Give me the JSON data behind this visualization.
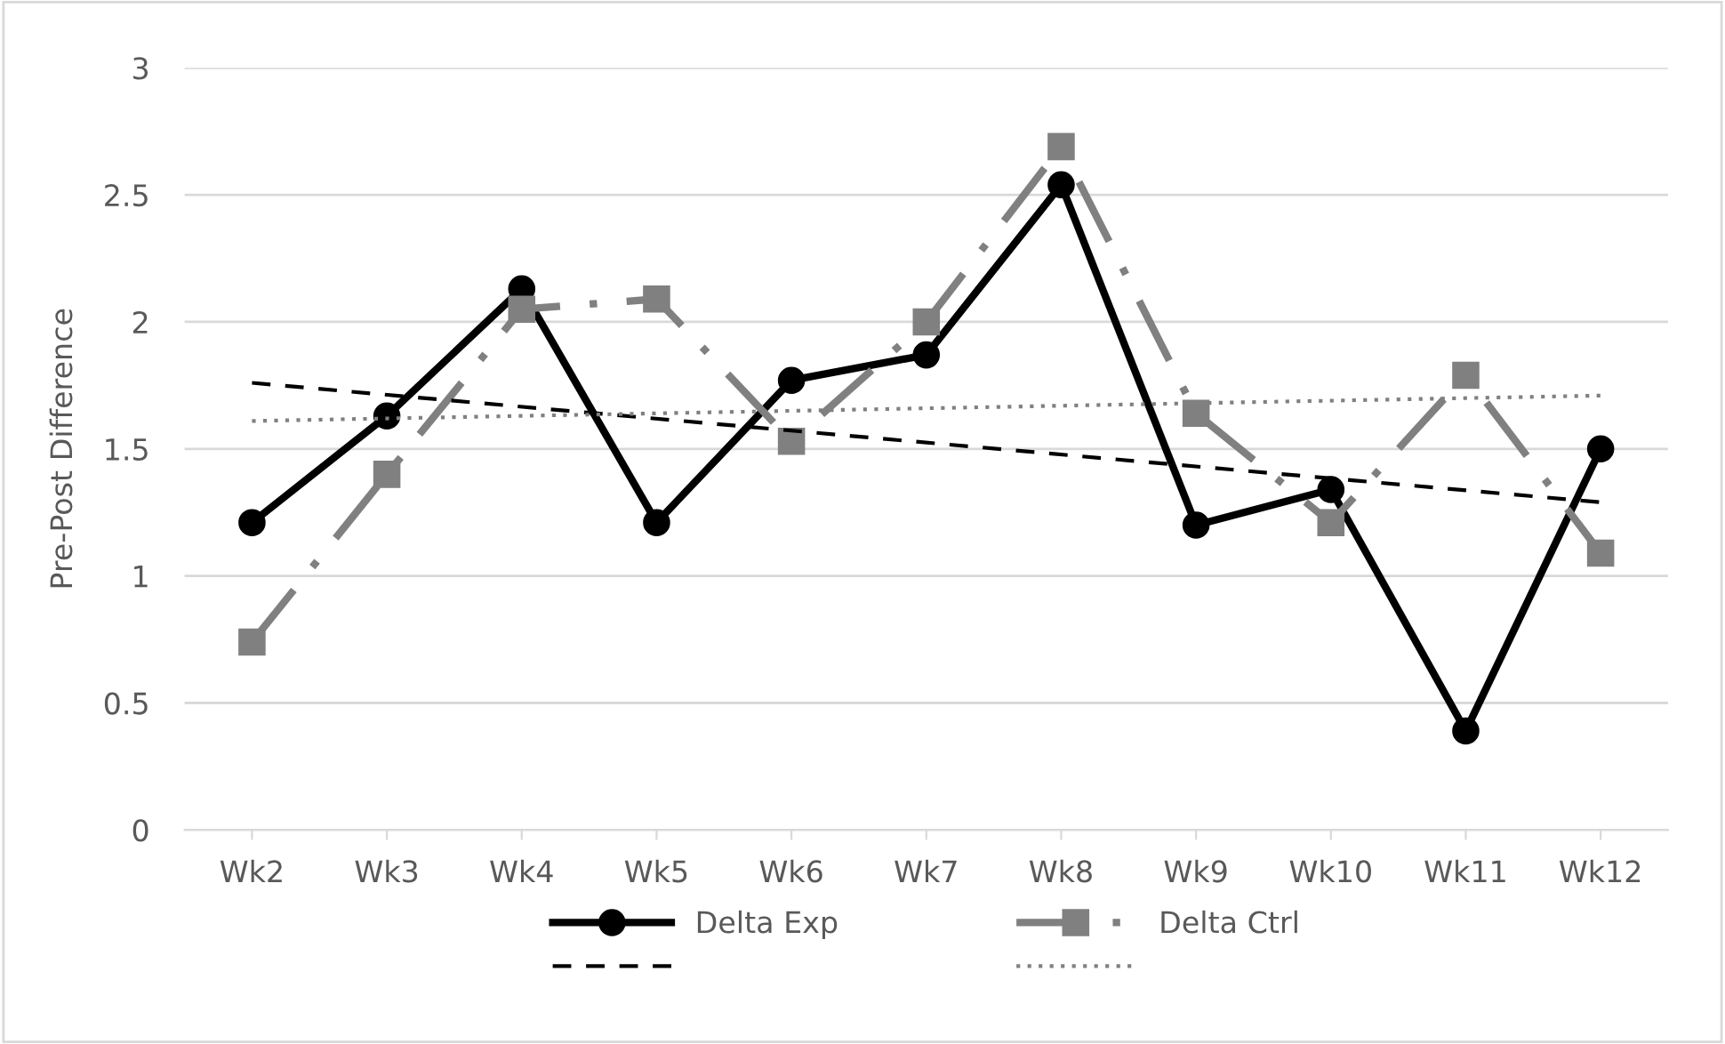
{
  "chart_data": {
    "type": "line",
    "ylabel": "Pre-Post Difference",
    "categories": [
      "Wk2",
      "Wk3",
      "Wk4",
      "Wk5",
      "Wk6",
      "Wk7",
      "Wk8",
      "Wk9",
      "Wk10",
      "Wk11",
      "Wk12"
    ],
    "series": [
      {
        "name": "Delta Exp",
        "color": "#000000",
        "marker": "circle",
        "line_style": "solid",
        "values": [
          1.21,
          1.63,
          2.13,
          1.21,
          1.77,
          1.87,
          2.54,
          1.2,
          1.34,
          0.39,
          1.5
        ]
      },
      {
        "name": "Delta Ctrl",
        "color": "#808080",
        "marker": "square",
        "line_style": "dashdot",
        "values": [
          0.74,
          1.4,
          2.05,
          2.09,
          1.53,
          2.0,
          2.69,
          1.64,
          1.21,
          1.79,
          1.09
        ]
      },
      {
        "color": "#000000",
        "marker": "none",
        "line_style": "dashed",
        "x": [
          "Wk2",
          "Wk12"
        ],
        "values": [
          1.76,
          1.29
        ]
      },
      {
        "color": "#808080",
        "marker": "none",
        "line_style": "dotted",
        "x": [
          "Wk2",
          "Wk12"
        ],
        "values": [
          1.61,
          1.71
        ]
      }
    ],
    "ylim": [
      0,
      3
    ],
    "yticks": [
      0,
      0.5,
      1,
      1.5,
      2,
      2.5,
      3
    ],
    "grid": "y",
    "legend": "bottom"
  }
}
